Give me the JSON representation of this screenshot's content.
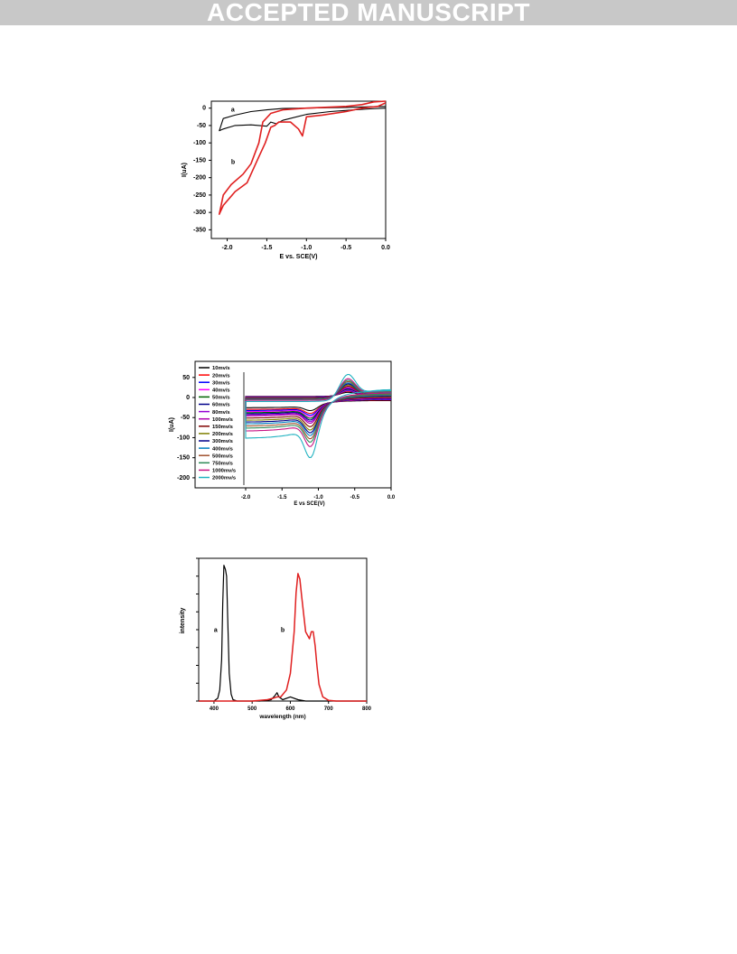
{
  "banner": {
    "text": "ACCEPTED MANUSCRIPT"
  },
  "colors": {
    "banner_bg": "#c8c8c8",
    "banner_text": "#ffffff",
    "axis": "#000000"
  },
  "chart_data": [
    {
      "type": "line",
      "xlabel": "E vs. SCE(V)",
      "ylabel": "I(uA)",
      "xlim": [
        -2.2,
        0.0
      ],
      "ylim": [
        -375,
        20
      ],
      "x_ticks": [
        -2.0,
        -1.5,
        -1.0,
        -0.5,
        0.0
      ],
      "x_tick_labels": [
        "-2.0",
        "-1.5",
        "-1.0",
        "-0.5",
        "0.0"
      ],
      "y_ticks": [
        0,
        -50,
        -100,
        -150,
        -200,
        -250,
        -300,
        -350
      ],
      "y_tick_labels": [
        "0",
        "-50",
        "-100",
        "-150",
        "-200",
        "-250",
        "-300",
        "-350"
      ],
      "grid": false,
      "annotations": [
        {
          "text": "a",
          "x": -1.95,
          "y": -10
        },
        {
          "text": "b",
          "x": -1.95,
          "y": -160
        }
      ],
      "series": [
        {
          "label": "a",
          "color": "#000000",
          "x": [
            0.0,
            -0.2,
            -0.5,
            -0.8,
            -1.0,
            -1.3,
            -1.5,
            -1.7,
            -1.9,
            -2.05,
            -2.1,
            -2.05,
            -1.9,
            -1.7,
            -1.5,
            -1.45,
            -1.38,
            -1.3,
            -1.0,
            -0.7,
            -0.4,
            -0.2,
            0.0
          ],
          "y": [
            5,
            4,
            2,
            1,
            0,
            -1,
            -5,
            -10,
            -20,
            -30,
            -65,
            -60,
            -50,
            -48,
            -52,
            -40,
            -45,
            -35,
            -18,
            -10,
            -5,
            -2,
            0
          ]
        },
        {
          "label": "b",
          "color": "#e02020",
          "x": [
            0.0,
            -0.15,
            -0.3,
            -0.5,
            -0.8,
            -1.0,
            -1.3,
            -1.45,
            -1.55,
            -1.6,
            -1.7,
            -1.8,
            -1.95,
            -2.05,
            -2.1,
            -2.05,
            -1.9,
            -1.75,
            -1.6,
            -1.52,
            -1.45,
            -1.4,
            -1.35,
            -1.2,
            -1.1,
            -1.05,
            -1.0,
            -0.8,
            -0.5,
            -0.3,
            -0.1,
            0.0
          ],
          "y": [
            20,
            18,
            10,
            5,
            2,
            0,
            -5,
            -15,
            -40,
            -100,
            -160,
            -190,
            -220,
            -250,
            -305,
            -280,
            -240,
            -215,
            -140,
            -100,
            -55,
            -50,
            -40,
            -40,
            -60,
            -80,
            -25,
            -20,
            -10,
            0,
            5,
            15
          ]
        }
      ]
    },
    {
      "type": "line",
      "xlabel": "E vs SCE(V)",
      "ylabel": "I(uA)",
      "xlim": [
        -2.0,
        0.0
      ],
      "ylim": [
        -225,
        90
      ],
      "x_ticks": [
        -2.0,
        -1.5,
        -1.0,
        -0.5,
        0.0
      ],
      "x_tick_labels": [
        "-2.0",
        "-1.5",
        "-1.0",
        "-0.5",
        "0.0"
      ],
      "y_ticks": [
        50,
        0,
        -50,
        -100,
        -150,
        -200
      ],
      "y_tick_labels": [
        "50",
        "0",
        "-50",
        "-100",
        "-150",
        "-200"
      ],
      "grid": false,
      "legend": {
        "position": "left",
        "entries": [
          {
            "label": "10mv/s",
            "color": "#000000"
          },
          {
            "label": "20mv/s",
            "color": "#ff0000"
          },
          {
            "label": "30mv/s",
            "color": "#0000ff"
          },
          {
            "label": "40mv/s",
            "color": "#ff00ff"
          },
          {
            "label": "50mv/s",
            "color": "#006400"
          },
          {
            "label": "60mv/s",
            "color": "#00008b"
          },
          {
            "label": "80mv/s",
            "color": "#9400d3"
          },
          {
            "label": "100mv/s",
            "color": "#b000b0"
          },
          {
            "label": "150mv/s",
            "color": "#800000"
          },
          {
            "label": "200mv/s",
            "color": "#808000"
          },
          {
            "label": "300mv/s",
            "color": "#00008b"
          },
          {
            "label": "400mv/s",
            "color": "#0080c0"
          },
          {
            "label": "500mv/s",
            "color": "#a0522d"
          },
          {
            "label": "750mv/s",
            "color": "#2e8b57"
          },
          {
            "label": "1000mv/s",
            "color": "#c71585"
          },
          {
            "label": "2000mv/s",
            "color": "#20b2c0"
          }
        ]
      },
      "series_peak_scale": [
        0.15,
        0.2,
        0.23,
        0.26,
        0.29,
        0.32,
        0.35,
        0.38,
        0.44,
        0.5,
        0.55,
        0.6,
        0.66,
        0.72,
        0.8,
        1.0
      ]
    },
    {
      "type": "line",
      "xlabel": "wavelength (nm)",
      "ylabel": "intensity",
      "xlim": [
        400,
        800
      ],
      "x_ticks": [
        400,
        500,
        600,
        700,
        800
      ],
      "x_tick_labels": [
        "400",
        "500",
        "600",
        "700",
        "800"
      ],
      "grid": false,
      "annotations": [
        {
          "text": "a",
          "x": 400,
          "y": 0.5
        },
        {
          "text": "b",
          "x": 575,
          "y": 0.5
        }
      ],
      "series": [
        {
          "label": "a",
          "color": "#000000",
          "x": [
            360,
            400,
            410,
            415,
            420,
            423,
            426,
            430,
            433,
            436,
            440,
            445,
            450,
            460,
            520,
            550,
            560,
            565,
            570,
            580,
            600,
            620,
            640,
            660,
            700,
            800
          ],
          "y": [
            0,
            0,
            0.02,
            0.08,
            0.3,
            0.7,
            0.98,
            0.95,
            0.9,
            0.6,
            0.2,
            0.05,
            0.01,
            0,
            0,
            0.01,
            0.04,
            0.06,
            0.03,
            0.01,
            0.03,
            0.01,
            0,
            0,
            0,
            0
          ]
        },
        {
          "label": "b",
          "color": "#e02020",
          "x": [
            360,
            500,
            520,
            540,
            555,
            565,
            575,
            590,
            600,
            610,
            615,
            620,
            625,
            630,
            640,
            650,
            655,
            660,
            665,
            670,
            675,
            685,
            700,
            720,
            800
          ],
          "y": [
            0,
            0,
            0.005,
            0.01,
            0.02,
            0.03,
            0.03,
            0.08,
            0.2,
            0.5,
            0.78,
            0.92,
            0.88,
            0.75,
            0.5,
            0.45,
            0.5,
            0.5,
            0.4,
            0.25,
            0.12,
            0.03,
            0.005,
            0,
            0
          ]
        }
      ]
    }
  ]
}
